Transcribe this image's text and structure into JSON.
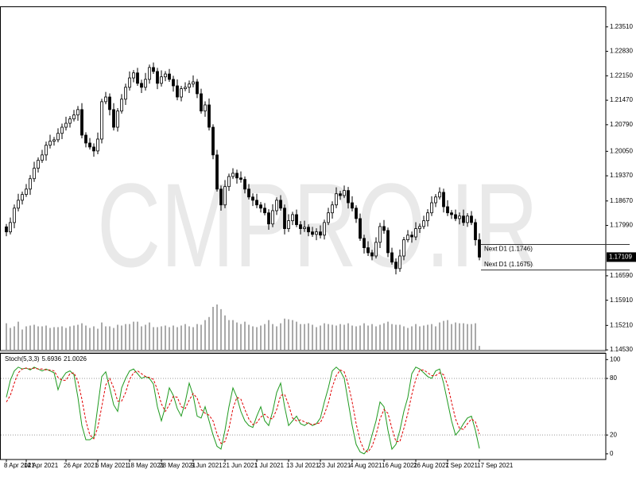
{
  "chart_data": [
    {
      "type": "candlestick",
      "watermark": "CMPRO.IR",
      "categories": [
        "8 Apr 2021",
        null,
        null,
        null,
        null,
        "14 Apr 2021",
        null,
        null,
        null,
        null,
        null,
        null,
        null,
        null,
        null,
        "26 Apr 2021",
        null,
        null,
        null,
        null,
        null,
        null,
        null,
        "6 May 2021",
        null,
        null,
        null,
        null,
        null,
        null,
        null,
        "18 May 2021",
        null,
        null,
        null,
        null,
        null,
        null,
        null,
        "28 May 2021",
        null,
        null,
        null,
        null,
        null,
        null,
        null,
        "9 Jun 2021",
        null,
        null,
        null,
        null,
        null,
        null,
        null,
        "21 Jun 2021",
        null,
        null,
        null,
        null,
        null,
        null,
        null,
        "1 Jul 2021",
        null,
        null,
        null,
        null,
        null,
        null,
        null,
        "13 Jul 2021",
        null,
        null,
        null,
        null,
        null,
        null,
        null,
        "23 Jul 2021",
        null,
        null,
        null,
        null,
        null,
        null,
        null,
        "4 Aug 2021",
        null,
        null,
        null,
        null,
        null,
        null,
        null,
        "16 Aug 2021",
        null,
        null,
        null,
        null,
        null,
        null,
        null,
        "26 Aug 2021",
        null,
        null,
        null,
        null,
        null,
        null,
        null,
        "7 Sep 2021",
        null,
        null,
        null,
        null,
        null,
        null,
        null,
        "17 Sep 2021"
      ],
      "open": [
        1.1795,
        1.1781,
        1.1807,
        1.1847,
        1.1869,
        1.1885,
        1.19,
        1.1929,
        1.1958,
        1.198,
        1.1995,
        1.2022,
        1.2033,
        1.2037,
        1.2055,
        1.2072,
        1.2083,
        1.2095,
        1.2106,
        1.2121,
        1.205,
        1.2028,
        1.2017,
        1.2006,
        1.2039,
        1.2143,
        1.2156,
        1.2121,
        1.2072,
        1.2117,
        1.215,
        1.2183,
        1.2209,
        1.2223,
        1.2194,
        1.2183,
        1.2205,
        1.2238,
        1.2227,
        1.2194,
        1.2212,
        1.222,
        1.2205,
        1.2187,
        1.2156,
        1.2179,
        1.2183,
        1.2192,
        1.2198,
        1.2165,
        1.2117,
        1.2134,
        1.2072,
        1.1995,
        1.19,
        1.1856,
        1.1907,
        1.1935,
        1.1944,
        1.1931,
        1.1927,
        1.19,
        1.1878,
        1.1869,
        1.1856,
        1.1847,
        1.1834,
        1.1803,
        1.184,
        1.1869,
        1.1847,
        1.179,
        1.1812,
        1.1829,
        1.1801,
        1.179,
        1.1794,
        1.1781,
        1.1774,
        1.1781,
        1.1772,
        1.1807,
        1.1834,
        1.1856,
        1.1887,
        1.1882,
        1.1896,
        1.1862,
        1.1847,
        1.1818,
        1.1763,
        1.1737,
        1.1723,
        1.1714,
        1.1752,
        1.1796,
        1.1785,
        1.1723,
        1.1697,
        1.1679,
        1.1714,
        1.1759,
        1.1772,
        1.1767,
        1.179,
        1.1796,
        1.1812,
        1.1834,
        1.1862,
        1.1878,
        1.1891,
        1.1851,
        1.1834,
        1.1829,
        1.1818,
        1.1825,
        1.1807,
        1.1825,
        1.1807,
        1.1759
      ],
      "high": [
        1.1803,
        1.1821,
        1.1857,
        1.1887,
        1.1893,
        1.1914,
        1.1939,
        1.1976,
        1.1988,
        1.2009,
        1.2032,
        1.2051,
        1.2045,
        1.2069,
        1.2082,
        1.2101,
        1.2103,
        1.212,
        1.2131,
        1.2139,
        1.2058,
        1.2042,
        1.2027,
        1.2057,
        1.2151,
        1.217,
        1.2166,
        1.2139,
        1.2125,
        1.2164,
        1.2193,
        1.2227,
        1.2231,
        1.2237,
        1.2204,
        1.2223,
        1.2246,
        1.2252,
        1.2237,
        1.223,
        1.2228,
        1.2234,
        1.2215,
        1.2205,
        1.2187,
        1.2197,
        1.2202,
        1.2216,
        1.2206,
        1.2179,
        1.2144,
        1.2152,
        1.208,
        1.2009,
        1.191,
        1.1925,
        1.1943,
        1.1958,
        1.1954,
        1.1949,
        1.1935,
        1.1914,
        1.1888,
        1.1887,
        1.1864,
        1.1861,
        1.1844,
        1.1858,
        1.1877,
        1.1883,
        1.1857,
        1.183,
        1.1837,
        1.1843,
        1.1811,
        1.1812,
        1.1802,
        1.1795,
        1.1791,
        1.1799,
        1.1815,
        1.1848,
        1.1866,
        1.1905,
        1.1895,
        1.191,
        1.1906,
        1.188,
        1.1855,
        1.1832,
        1.1773,
        1.1755,
        1.1731,
        1.1766,
        1.1806,
        1.1814,
        1.1793,
        1.1737,
        1.1707,
        1.1732,
        1.1767,
        1.1786,
        1.1782,
        1.1808,
        1.1804,
        1.1826,
        1.1844,
        1.188,
        1.1886,
        1.1905,
        1.1901,
        1.1869,
        1.1842,
        1.1843,
        1.1835,
        1.1843,
        1.1833,
        1.1839,
        1.1817,
        1.1777
      ],
      "low": [
        1.1769,
        1.1774,
        1.1791,
        1.1838,
        1.1857,
        1.1878,
        1.1884,
        1.192,
        1.1946,
        1.1973,
        1.1979,
        1.2013,
        1.2021,
        1.203,
        1.2039,
        1.2063,
        1.2071,
        1.2088,
        1.209,
        1.2041,
        1.2016,
        1.201,
        1.199,
        1.1997,
        1.2027,
        1.2136,
        1.2105,
        1.2063,
        1.206,
        1.211,
        1.2134,
        1.2174,
        1.2197,
        1.2187,
        1.2167,
        1.2174,
        1.2193,
        1.222,
        1.2178,
        1.2185,
        1.22,
        1.2198,
        1.2171,
        1.2147,
        1.2144,
        1.2172,
        1.2167,
        1.2183,
        1.2153,
        1.211,
        1.2101,
        1.2063,
        1.1983,
        1.1893,
        1.184,
        1.1847,
        1.1895,
        1.1928,
        1.1915,
        1.1918,
        1.1888,
        1.1871,
        1.1853,
        1.1847,
        1.1835,
        1.1827,
        1.1787,
        1.1794,
        1.1828,
        1.184,
        1.1774,
        1.1781,
        1.18,
        1.1794,
        1.1774,
        1.1781,
        1.1769,
        1.1767,
        1.1758,
        1.1763,
        1.176,
        1.18,
        1.1818,
        1.1847,
        1.187,
        1.1875,
        1.1846,
        1.1838,
        1.1806,
        1.1756,
        1.1721,
        1.1714,
        1.1702,
        1.1707,
        1.1736,
        1.1776,
        1.1711,
        1.169,
        1.1663,
        1.167,
        1.1702,
        1.1752,
        1.1751,
        1.1758,
        1.1778,
        1.1789,
        1.1796,
        1.1825,
        1.185,
        1.1871,
        1.1835,
        1.1825,
        1.1817,
        1.1811,
        1.1802,
        1.1798,
        1.1795,
        1.18,
        1.1743,
        1.1702
      ],
      "close": [
        1.1781,
        1.1807,
        1.1847,
        1.1869,
        1.1885,
        1.19,
        1.1929,
        1.1958,
        1.198,
        1.1995,
        1.2022,
        1.2033,
        1.2037,
        1.2055,
        1.2072,
        1.2083,
        1.2095,
        1.2106,
        1.2121,
        1.205,
        1.2028,
        1.2017,
        1.2006,
        1.2039,
        1.2143,
        1.2156,
        1.2121,
        1.2072,
        1.2117,
        1.215,
        1.2183,
        1.2209,
        1.2223,
        1.2194,
        1.2183,
        1.2205,
        1.2238,
        1.2227,
        1.2194,
        1.2212,
        1.222,
        1.2205,
        1.2187,
        1.2156,
        1.2179,
        1.2183,
        1.2192,
        1.2198,
        1.2165,
        1.2117,
        1.2134,
        1.2072,
        1.1995,
        1.19,
        1.1856,
        1.1907,
        1.1935,
        1.1944,
        1.1931,
        1.1927,
        1.19,
        1.1878,
        1.1869,
        1.1856,
        1.1847,
        1.1834,
        1.1803,
        1.184,
        1.1869,
        1.1847,
        1.179,
        1.1812,
        1.1829,
        1.1801,
        1.179,
        1.1794,
        1.1781,
        1.1774,
        1.1781,
        1.1772,
        1.1807,
        1.1834,
        1.1856,
        1.1887,
        1.1882,
        1.1896,
        1.1862,
        1.1847,
        1.1818,
        1.1763,
        1.1737,
        1.1723,
        1.1714,
        1.1752,
        1.1796,
        1.1785,
        1.1723,
        1.1697,
        1.1679,
        1.1714,
        1.1759,
        1.1772,
        1.1767,
        1.179,
        1.1796,
        1.1812,
        1.1834,
        1.1862,
        1.1878,
        1.1891,
        1.1851,
        1.1834,
        1.1829,
        1.1818,
        1.1825,
        1.1807,
        1.1825,
        1.1807,
        1.1759,
        1.17109
      ],
      "volume": [
        34,
        28,
        30,
        36,
        26,
        30,
        31,
        32,
        30,
        30,
        31,
        28,
        29,
        29,
        30,
        28,
        30,
        31,
        32,
        34,
        31,
        28,
        30,
        27,
        35,
        30,
        30,
        28,
        32,
        31,
        33,
        33,
        36,
        36,
        30,
        32,
        35,
        29,
        29,
        30,
        31,
        29,
        31,
        29,
        31,
        33,
        30,
        29,
        33,
        32,
        38,
        42,
        55,
        58,
        52,
        44,
        38,
        38,
        35,
        33,
        36,
        32,
        30,
        29,
        31,
        33,
        38,
        33,
        30,
        34,
        40,
        39,
        38,
        36,
        33,
        33,
        34,
        32,
        29,
        31,
        34,
        33,
        32,
        31,
        33,
        32,
        34,
        31,
        30,
        31,
        34,
        31,
        33,
        30,
        32,
        34,
        36,
        33,
        32,
        32,
        30,
        28,
        30,
        33,
        30,
        31,
        32,
        33,
        30,
        35,
        37,
        38,
        33,
        35,
        34,
        34,
        33,
        33,
        34,
        5
      ],
      "up_color": "#ffffff",
      "down_color": "#000000",
      "volume_color": "#555555",
      "ylim": [
        1.1451,
        1.2408
      ],
      "yticks": [
        {
          "value": 1.2351,
          "label": "1.23510"
        },
        {
          "value": 1.2283,
          "label": "1.22830"
        },
        {
          "value": 1.2215,
          "label": "1.22150"
        },
        {
          "value": 1.2147,
          "label": "1.21470"
        },
        {
          "value": 1.2079,
          "label": "1.20790"
        },
        {
          "value": 1.2005,
          "label": "1.20050"
        },
        {
          "value": 1.1937,
          "label": "1.19370"
        },
        {
          "value": 1.1867,
          "label": "1.18670"
        },
        {
          "value": 1.1799,
          "label": "1.17990"
        },
        {
          "value": 1.1659,
          "label": "1.16590"
        },
        {
          "value": 1.1591,
          "label": "1.15910"
        },
        {
          "value": 1.1521,
          "label": "1.15210"
        },
        {
          "value": 1.1453,
          "label": "1.14530"
        }
      ],
      "current_price": 1.17109,
      "annotations": [
        {
          "label": "Next D1 (1.1746)",
          "value": 1.1746
        },
        {
          "label": "Next D1 (1.1675)",
          "value": 1.1675
        }
      ]
    },
    {
      "type": "line",
      "title": "Stoch(5,3,3)",
      "series": [
        {
          "color": "#1f9a1f",
          "style": "solid",
          "values": [
            60,
            78,
            88,
            92,
            90,
            91,
            89,
            92,
            90,
            88,
            90,
            88,
            86,
            68,
            80,
            86,
            88,
            84,
            60,
            30,
            15,
            15,
            18,
            50,
            82,
            87,
            70,
            52,
            45,
            70,
            80,
            88,
            90,
            85,
            80,
            82,
            80,
            74,
            50,
            35,
            50,
            70,
            62,
            48,
            40,
            55,
            75,
            62,
            40,
            38,
            50,
            35,
            20,
            8,
            5,
            25,
            50,
            70,
            60,
            45,
            35,
            30,
            28,
            40,
            50,
            35,
            30,
            45,
            65,
            75,
            50,
            30,
            35,
            40,
            32,
            30,
            33,
            30,
            32,
            38,
            55,
            70,
            88,
            92,
            88,
            80,
            55,
            30,
            10,
            2,
            0,
            5,
            20,
            35,
            55,
            50,
            25,
            5,
            10,
            25,
            45,
            60,
            85,
            92,
            90,
            86,
            82,
            80,
            88,
            90,
            75,
            55,
            35,
            20,
            25,
            32,
            38,
            40,
            25,
            5.6936
          ]
        },
        {
          "color": "#e00000",
          "style": "dashed",
          "values": [
            55,
            62,
            75,
            86,
            90,
            91,
            90,
            91,
            90,
            90,
            89,
            89,
            88,
            81,
            78,
            78,
            85,
            86,
            77,
            58,
            35,
            20,
            16,
            28,
            50,
            73,
            80,
            70,
            56,
            56,
            65,
            79,
            86,
            88,
            85,
            82,
            81,
            79,
            68,
            53,
            45,
            52,
            61,
            60,
            50,
            48,
            57,
            64,
            59,
            47,
            43,
            41,
            35,
            21,
            11,
            13,
            27,
            48,
            60,
            58,
            47,
            37,
            31,
            33,
            39,
            42,
            38,
            37,
            47,
            62,
            63,
            52,
            38,
            35,
            36,
            34,
            32,
            31,
            32,
            33,
            42,
            54,
            71,
            83,
            89,
            87,
            74,
            55,
            32,
            14,
            4,
            2,
            8,
            20,
            37,
            47,
            43,
            27,
            13,
            13,
            27,
            43,
            63,
            79,
            89,
            89,
            86,
            83,
            83,
            86,
            84,
            73,
            55,
            37,
            27,
            26,
            32,
            37,
            34,
            21.0026
          ]
        }
      ],
      "ylim": [
        -6,
        107
      ],
      "yticks": [
        0,
        20,
        80,
        100
      ],
      "levels": [
        80,
        20
      ],
      "level_color": "#999999"
    }
  ]
}
